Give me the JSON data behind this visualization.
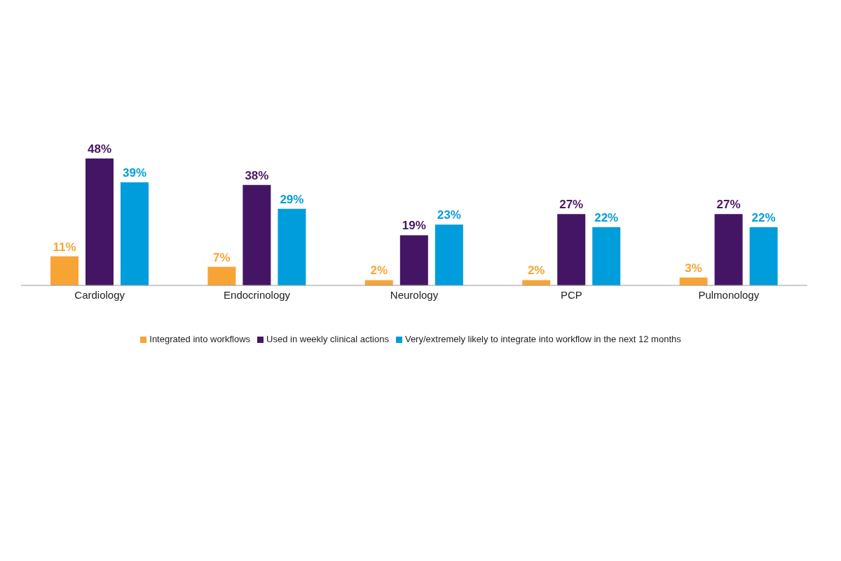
{
  "chart_data": {
    "type": "bar",
    "categories": [
      "Cardiology",
      "Endocrinology",
      "Neurology",
      "PCP",
      "Pulmonology"
    ],
    "series": [
      {
        "name": "Integrated into workflows",
        "color": "#f8a435",
        "values": [
          11,
          7,
          2,
          2,
          3
        ],
        "value_labels": [
          "11%",
          "7%",
          "2%",
          "2%",
          "3%"
        ]
      },
      {
        "name": "Used in weekly clinical actions",
        "color": "#451565",
        "values": [
          48,
          38,
          19,
          27,
          27
        ],
        "value_labels": [
          "48%",
          "38%",
          "19%",
          "27%",
          "27%"
        ]
      },
      {
        "name": "Very/extremely likely to integrate into workflow in the next 12 months",
        "color": "#009ddc",
        "values": [
          39,
          29,
          23,
          22,
          22
        ],
        "value_labels": [
          "39%",
          "29%",
          "23%",
          "22%",
          "22%"
        ]
      }
    ],
    "grid": false,
    "legend": "bottom"
  }
}
